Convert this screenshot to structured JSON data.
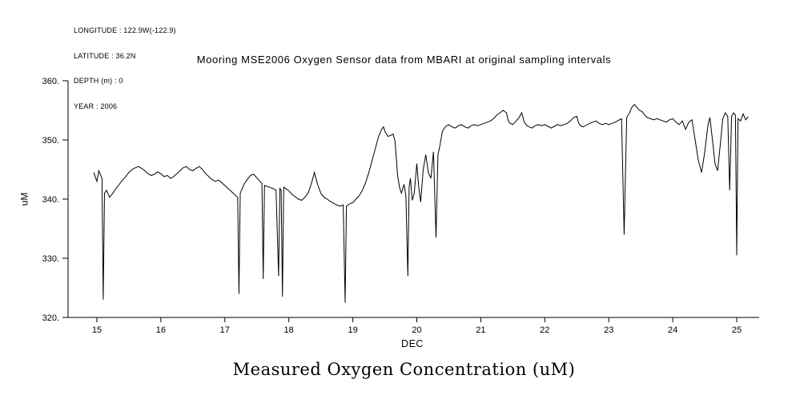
{
  "meta": {
    "lines": [
      "LONGITUDE : 122.9W(-122.9)",
      "LATITUDE : 36.2N",
      "DEPTH (m) : 0",
      "YEAR : 2006"
    ]
  },
  "title": "Mooring MSE2006 Oxygen Sensor data from MBARI at original sampling intervals",
  "caption": "Measured Oxygen Concentration (uM)",
  "chart_data": {
    "type": "line",
    "title": "Mooring MSE2006 Oxygen Sensor data from MBARI at original sampling intervals",
    "xlabel": "DEC",
    "ylabel": "uM",
    "xlim": [
      14.55,
      25.35
    ],
    "ylim": [
      320,
      360
    ],
    "x_ticks": [
      15,
      16,
      17,
      18,
      19,
      20,
      21,
      22,
      23,
      24,
      25
    ],
    "x_tick_labels": [
      "15",
      "16",
      "17",
      "18",
      "19",
      "20",
      "21",
      "22",
      "23",
      "24",
      "25"
    ],
    "y_ticks": [
      320,
      330,
      340,
      350,
      360
    ],
    "y_tick_labels": [
      "320.",
      "330.",
      "340.",
      "350.",
      "360."
    ],
    "grid": false,
    "legend": "none",
    "line_color": "#000000",
    "background_color": "#ffffff",
    "series": [
      {
        "name": "measured_oxygen_concentration_uM",
        "points": [
          [
            14.95,
            344.5
          ],
          [
            15.0,
            343.0
          ],
          [
            15.03,
            344.8
          ],
          [
            15.06,
            344.0
          ],
          [
            15.08,
            343.5
          ],
          [
            15.1,
            323.0
          ],
          [
            15.12,
            341.0
          ],
          [
            15.15,
            341.5
          ],
          [
            15.2,
            340.3
          ],
          [
            15.25,
            341.0
          ],
          [
            15.3,
            341.8
          ],
          [
            15.35,
            342.5
          ],
          [
            15.4,
            343.2
          ],
          [
            15.45,
            343.8
          ],
          [
            15.5,
            344.5
          ],
          [
            15.55,
            345.0
          ],
          [
            15.6,
            345.3
          ],
          [
            15.65,
            345.5
          ],
          [
            15.7,
            345.2
          ],
          [
            15.75,
            344.8
          ],
          [
            15.8,
            344.3
          ],
          [
            15.85,
            344.0
          ],
          [
            15.9,
            344.2
          ],
          [
            15.95,
            344.6
          ],
          [
            16.0,
            344.3
          ],
          [
            16.05,
            343.8
          ],
          [
            16.1,
            344.0
          ],
          [
            16.15,
            343.5
          ],
          [
            16.2,
            343.8
          ],
          [
            16.25,
            344.3
          ],
          [
            16.3,
            344.8
          ],
          [
            16.35,
            345.3
          ],
          [
            16.4,
            345.5
          ],
          [
            16.45,
            345.0
          ],
          [
            16.5,
            344.8
          ],
          [
            16.55,
            345.2
          ],
          [
            16.6,
            345.5
          ],
          [
            16.65,
            345.0
          ],
          [
            16.7,
            344.3
          ],
          [
            16.75,
            343.8
          ],
          [
            16.8,
            343.3
          ],
          [
            16.85,
            343.0
          ],
          [
            16.9,
            343.2
          ],
          [
            16.95,
            342.8
          ],
          [
            17.0,
            342.3
          ],
          [
            17.05,
            341.8
          ],
          [
            17.1,
            341.3
          ],
          [
            17.15,
            340.8
          ],
          [
            17.2,
            340.3
          ],
          [
            17.22,
            324.0
          ],
          [
            17.24,
            341.0
          ],
          [
            17.3,
            342.5
          ],
          [
            17.35,
            343.3
          ],
          [
            17.4,
            344.0
          ],
          [
            17.45,
            344.2
          ],
          [
            17.5,
            343.6
          ],
          [
            17.55,
            343.0
          ],
          [
            17.58,
            342.6
          ],
          [
            17.6,
            326.5
          ],
          [
            17.62,
            342.3
          ],
          [
            17.7,
            342.0
          ],
          [
            17.75,
            341.8
          ],
          [
            17.8,
            341.5
          ],
          [
            17.84,
            327.0
          ],
          [
            17.86,
            341.8
          ],
          [
            17.88,
            341.5
          ],
          [
            17.9,
            323.5
          ],
          [
            17.92,
            342.0
          ],
          [
            17.95,
            341.8
          ],
          [
            18.0,
            341.4
          ],
          [
            18.05,
            340.8
          ],
          [
            18.1,
            340.4
          ],
          [
            18.15,
            340.0
          ],
          [
            18.2,
            339.8
          ],
          [
            18.25,
            340.3
          ],
          [
            18.3,
            341.0
          ],
          [
            18.35,
            342.5
          ],
          [
            18.4,
            344.5
          ],
          [
            18.45,
            342.5
          ],
          [
            18.5,
            341.0
          ],
          [
            18.55,
            340.3
          ],
          [
            18.6,
            340.0
          ],
          [
            18.65,
            339.6
          ],
          [
            18.7,
            339.3
          ],
          [
            18.75,
            339.0
          ],
          [
            18.8,
            338.8
          ],
          [
            18.85,
            339.0
          ],
          [
            18.88,
            322.5
          ],
          [
            18.9,
            338.8
          ],
          [
            18.95,
            339.2
          ],
          [
            19.0,
            339.4
          ],
          [
            19.05,
            340.0
          ],
          [
            19.1,
            340.6
          ],
          [
            19.15,
            341.5
          ],
          [
            19.2,
            342.8
          ],
          [
            19.25,
            344.5
          ],
          [
            19.3,
            346.5
          ],
          [
            19.35,
            348.5
          ],
          [
            19.4,
            350.5
          ],
          [
            19.45,
            351.8
          ],
          [
            19.48,
            352.2
          ],
          [
            19.5,
            351.5
          ],
          [
            19.55,
            350.6
          ],
          [
            19.6,
            350.8
          ],
          [
            19.63,
            351.0
          ],
          [
            19.66,
            349.8
          ],
          [
            19.7,
            344.0
          ],
          [
            19.73,
            342.0
          ],
          [
            19.76,
            341.0
          ],
          [
            19.8,
            342.5
          ],
          [
            19.83,
            340.5
          ],
          [
            19.86,
            327.0
          ],
          [
            19.88,
            342.0
          ],
          [
            19.9,
            343.5
          ],
          [
            19.93,
            339.8
          ],
          [
            19.96,
            341.0
          ],
          [
            20.0,
            346.0
          ],
          [
            20.03,
            342.0
          ],
          [
            20.06,
            339.5
          ],
          [
            20.1,
            345.0
          ],
          [
            20.14,
            347.5
          ],
          [
            20.18,
            344.5
          ],
          [
            20.22,
            343.5
          ],
          [
            20.26,
            348.0
          ],
          [
            20.3,
            333.5
          ],
          [
            20.33,
            347.5
          ],
          [
            20.36,
            349.0
          ],
          [
            20.4,
            351.5
          ],
          [
            20.45,
            352.3
          ],
          [
            20.5,
            352.6
          ],
          [
            20.55,
            352.2
          ],
          [
            20.6,
            352.0
          ],
          [
            20.65,
            352.4
          ],
          [
            20.7,
            352.6
          ],
          [
            20.75,
            352.2
          ],
          [
            20.8,
            352.0
          ],
          [
            20.85,
            352.4
          ],
          [
            20.9,
            352.6
          ],
          [
            20.95,
            352.4
          ],
          [
            21.0,
            352.6
          ],
          [
            21.05,
            352.8
          ],
          [
            21.1,
            353.0
          ],
          [
            21.15,
            353.2
          ],
          [
            21.2,
            353.6
          ],
          [
            21.25,
            354.2
          ],
          [
            21.3,
            354.6
          ],
          [
            21.35,
            355.0
          ],
          [
            21.4,
            354.6
          ],
          [
            21.43,
            353.2
          ],
          [
            21.46,
            352.8
          ],
          [
            21.5,
            352.6
          ],
          [
            21.55,
            353.2
          ],
          [
            21.6,
            353.8
          ],
          [
            21.64,
            354.6
          ],
          [
            21.68,
            353.0
          ],
          [
            21.72,
            352.4
          ],
          [
            21.76,
            352.2
          ],
          [
            21.8,
            352.0
          ],
          [
            21.85,
            352.4
          ],
          [
            21.9,
            352.6
          ],
          [
            21.95,
            352.4
          ],
          [
            22.0,
            352.6
          ],
          [
            22.05,
            352.3
          ],
          [
            22.1,
            352.0
          ],
          [
            22.15,
            352.3
          ],
          [
            22.2,
            352.6
          ],
          [
            22.25,
            352.4
          ],
          [
            22.3,
            352.6
          ],
          [
            22.35,
            352.8
          ],
          [
            22.4,
            353.2
          ],
          [
            22.45,
            353.8
          ],
          [
            22.5,
            354.0
          ],
          [
            22.53,
            352.8
          ],
          [
            22.56,
            352.4
          ],
          [
            22.6,
            352.2
          ],
          [
            22.65,
            352.5
          ],
          [
            22.7,
            352.8
          ],
          [
            22.75,
            353.0
          ],
          [
            22.8,
            353.2
          ],
          [
            22.85,
            352.8
          ],
          [
            22.9,
            352.6
          ],
          [
            22.95,
            352.8
          ],
          [
            23.0,
            352.6
          ],
          [
            23.05,
            352.8
          ],
          [
            23.1,
            353.0
          ],
          [
            23.15,
            353.3
          ],
          [
            23.2,
            353.6
          ],
          [
            23.24,
            334.0
          ],
          [
            23.28,
            353.8
          ],
          [
            23.32,
            354.5
          ],
          [
            23.36,
            355.5
          ],
          [
            23.4,
            356.0
          ],
          [
            23.44,
            355.5
          ],
          [
            23.48,
            355.0
          ],
          [
            23.52,
            354.8
          ],
          [
            23.56,
            354.2
          ],
          [
            23.6,
            353.8
          ],
          [
            23.65,
            353.6
          ],
          [
            23.7,
            353.4
          ],
          [
            23.75,
            353.6
          ],
          [
            23.8,
            353.4
          ],
          [
            23.85,
            353.2
          ],
          [
            23.9,
            353.0
          ],
          [
            23.95,
            353.4
          ],
          [
            24.0,
            353.6
          ],
          [
            24.05,
            353.0
          ],
          [
            24.1,
            352.6
          ],
          [
            24.15,
            353.2
          ],
          [
            24.2,
            351.8
          ],
          [
            24.25,
            353.0
          ],
          [
            24.3,
            353.4
          ],
          [
            24.35,
            350.0
          ],
          [
            24.4,
            346.5
          ],
          [
            24.45,
            344.5
          ],
          [
            24.5,
            348.0
          ],
          [
            24.55,
            352.5
          ],
          [
            24.58,
            353.8
          ],
          [
            24.62,
            350.0
          ],
          [
            24.66,
            346.0
          ],
          [
            24.7,
            344.8
          ],
          [
            24.74,
            349.0
          ],
          [
            24.78,
            353.5
          ],
          [
            24.82,
            354.6
          ],
          [
            24.86,
            354.0
          ],
          [
            24.89,
            341.5
          ],
          [
            24.92,
            354.0
          ],
          [
            24.95,
            354.6
          ],
          [
            24.98,
            354.2
          ],
          [
            25.0,
            330.5
          ],
          [
            25.02,
            353.6
          ],
          [
            25.06,
            353.2
          ],
          [
            25.1,
            354.4
          ],
          [
            25.14,
            353.4
          ],
          [
            25.18,
            353.9
          ]
        ]
      }
    ]
  }
}
